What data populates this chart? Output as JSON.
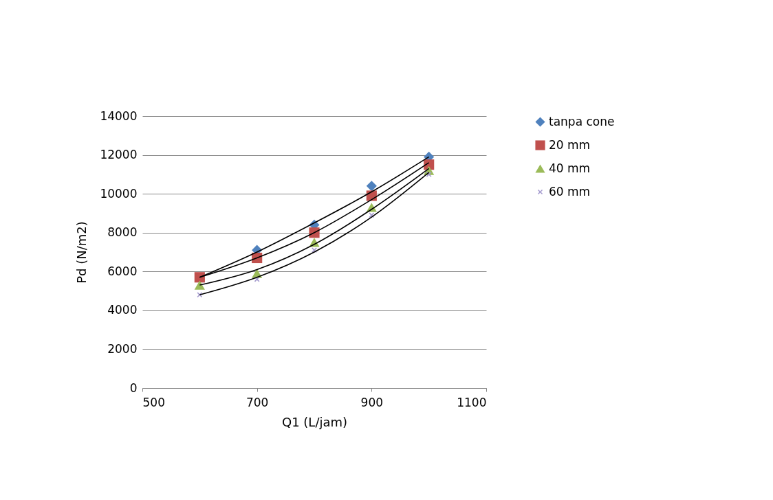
{
  "chart_data": {
    "type": "scatter",
    "xlabel": "Q1 (L/jam)",
    "ylabel": "Pd (N/m2)",
    "xlim": [
      500,
      1100
    ],
    "xticks": [
      500,
      700,
      900,
      1100
    ],
    "ylim": [
      0,
      14000
    ],
    "yticks": [
      0,
      2000,
      4000,
      6000,
      8000,
      10000,
      12000,
      14000
    ],
    "grid": "y",
    "legend": "right",
    "series": [
      {
        "name": "tanpa cone",
        "color": "#4f81bd",
        "marker": "diamond",
        "x": [
          700,
          800,
          900,
          1000
        ],
        "values": [
          7100,
          8400,
          10400,
          11900
        ]
      },
      {
        "name": "20 mm",
        "color": "#c0504d",
        "marker": "square",
        "x": [
          600,
          700,
          800,
          900,
          1000
        ],
        "values": [
          5700,
          6700,
          8000,
          9900,
          11500
        ]
      },
      {
        "name": "40 mm",
        "color": "#9bbb59",
        "marker": "triangle",
        "x": [
          600,
          700,
          800,
          900,
          1000
        ],
        "values": [
          5300,
          5900,
          7500,
          9300,
          11200
        ]
      },
      {
        "name": "60 mm",
        "color": "#a59bcf",
        "marker": "cross",
        "x": [
          600,
          700,
          800,
          900,
          1000
        ],
        "values": [
          4800,
          5600,
          7100,
          8900,
          11000
        ]
      },
      {
        "type": "line",
        "color": "#000000",
        "x": [
          600,
          700,
          800,
          900,
          1000
        ],
        "values": [
          5700,
          7000,
          8500,
          10100,
          11900
        ]
      },
      {
        "type": "line",
        "color": "#000000",
        "x": [
          600,
          700,
          800,
          900,
          1000
        ],
        "values": [
          5700,
          6700,
          8000,
          9700,
          11600
        ]
      },
      {
        "type": "line",
        "color": "#000000",
        "x": [
          600,
          700,
          800,
          900,
          1000
        ],
        "values": [
          5300,
          6100,
          7400,
          9200,
          11300
        ]
      },
      {
        "type": "line",
        "color": "#000000",
        "x": [
          600,
          700,
          800,
          900,
          1000
        ],
        "values": [
          4800,
          5700,
          7000,
          8800,
          11100
        ]
      }
    ]
  }
}
